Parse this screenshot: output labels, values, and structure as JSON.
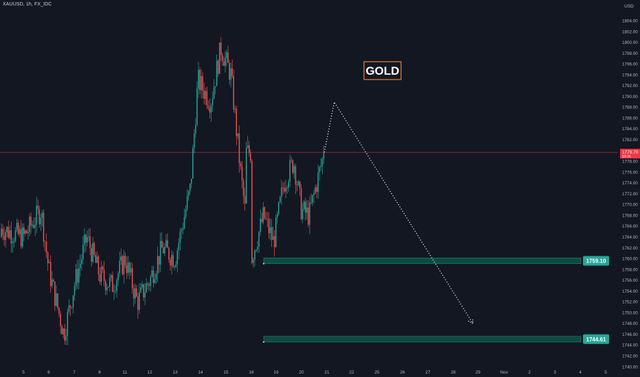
{
  "header": {
    "symbol_line": "XAUUSD, 1h, FX_IDC"
  },
  "axis": {
    "currency": "USD"
  },
  "colors": {
    "background": "#131722",
    "up": "#26a69a",
    "down": "#ef5350",
    "zone_fill": "#0d4a40",
    "zone_edge": "#1f8c6e",
    "label_bg": "#26a69a",
    "price_line": "#f23645",
    "title_border": "#e8833a",
    "text": "#d1d4dc"
  },
  "chart_data": {
    "type": "candlestick",
    "title": "GOLD",
    "instrument": "XAUUSD",
    "interval": "1h",
    "source": "FX_IDC",
    "ylim": [
      1739.4,
      1806.6
    ],
    "y_ticks": [
      1740,
      1742,
      1744,
      1746,
      1748,
      1750,
      1752,
      1754,
      1756,
      1758,
      1760,
      1762,
      1764,
      1766,
      1768,
      1770,
      1772,
      1774,
      1776,
      1778,
      1780,
      1782,
      1784,
      1786,
      1788,
      1790,
      1792,
      1794,
      1796,
      1798,
      1800,
      1802,
      1804
    ],
    "x_ticks": [
      "5",
      "6",
      "7",
      "8",
      "11",
      "12",
      "13",
      "14",
      "15",
      "18",
      "19",
      "20",
      "21",
      "22",
      "25",
      "26",
      "27",
      "28",
      "29",
      "Nov",
      "2",
      "3",
      "4",
      "5"
    ],
    "current_price": 1779.7,
    "current_price_label": "1779.70",
    "current_price_sub": "19:36",
    "price_path": [
      {
        "x": "5",
        "price": 1764
      },
      {
        "x": "5.7",
        "price": 1769
      },
      {
        "x": "6",
        "price": 1758
      },
      {
        "x": "6.6",
        "price": 1746
      },
      {
        "x": "7",
        "price": 1755
      },
      {
        "x": "7.5",
        "price": 1764
      },
      {
        "x": "8",
        "price": 1757
      },
      {
        "x": "8.5",
        "price": 1755
      },
      {
        "x": "11",
        "price": 1760
      },
      {
        "x": "11.5",
        "price": 1752
      },
      {
        "x": "12",
        "price": 1756
      },
      {
        "x": "12.5",
        "price": 1762
      },
      {
        "x": "13",
        "price": 1760
      },
      {
        "x": "13.6",
        "price": 1773
      },
      {
        "x": "13.9",
        "price": 1793
      },
      {
        "x": "14.4",
        "price": 1789
      },
      {
        "x": "14.8",
        "price": 1799
      },
      {
        "x": "15.2",
        "price": 1794
      },
      {
        "x": "15.6",
        "price": 1775
      },
      {
        "x": "15.8",
        "price": 1767
      },
      {
        "x": "16.2",
        "price": 1766
      },
      {
        "x": "18",
        "price": 1760
      },
      {
        "x": "18.5",
        "price": 1768
      },
      {
        "x": "18.9",
        "price": 1763
      },
      {
        "x": "19.3",
        "price": 1774
      },
      {
        "x": "19.7",
        "price": 1778
      },
      {
        "x": "20",
        "price": 1769
      },
      {
        "x": "20.3",
        "price": 1768
      },
      {
        "x": "20.6",
        "price": 1774
      },
      {
        "x": "20.9",
        "price": 1779.7
      }
    ],
    "zones": [
      {
        "label": "1759.10",
        "top": 1759.9,
        "bottom": 1759.1
      },
      {
        "label": "1744.61",
        "top": 1745.4,
        "bottom": 1744.61
      }
    ],
    "projection_path": [
      {
        "x": "20.9",
        "price": 1779.7
      },
      {
        "x": "21.3",
        "price": 1789
      },
      {
        "x": "28.8",
        "price": 1748
      }
    ]
  }
}
